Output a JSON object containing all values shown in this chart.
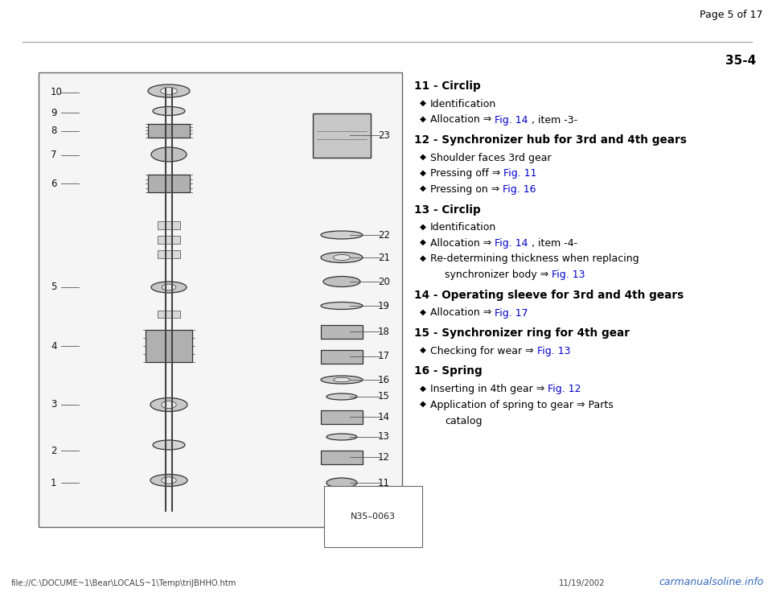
{
  "bg_color": "#ffffff",
  "page_header": "Page 5 of 17",
  "section_number": "35-4",
  "diagram_label": "N35–0063",
  "footer_left": "file://C:\\DOCUME~1\\Bear\\LOCALS~1\\Temp\\triJBHHO.htm",
  "footer_right": "11/19/2002",
  "watermark": "carmanualsoline.info",
  "link_color": "#0000cc",
  "text_color": "#000000",
  "gray_color": "#888888",
  "diamond_char": "◆",
  "items": [
    {
      "number": "11",
      "title": " - Circlip",
      "sub_items": [
        [
          {
            "t": "Identification",
            "c": "black",
            "b": false
          }
        ],
        [
          {
            "t": "Allocation ⇒ ",
            "c": "black",
            "b": false
          },
          {
            "t": "Fig. 14",
            "c": "blue",
            "b": false
          },
          {
            "t": " , item -3-",
            "c": "black",
            "b": false
          }
        ]
      ]
    },
    {
      "number": "12",
      "title": " - Synchronizer hub for 3rd and 4th gears",
      "sub_items": [
        [
          {
            "t": "Shoulder faces 3rd gear",
            "c": "black",
            "b": false
          }
        ],
        [
          {
            "t": "Pressing off ⇒ ",
            "c": "black",
            "b": false
          },
          {
            "t": "Fig. 11",
            "c": "blue",
            "b": false
          }
        ],
        [
          {
            "t": "Pressing on ⇒ ",
            "c": "black",
            "b": false
          },
          {
            "t": "Fig. 16",
            "c": "blue",
            "b": false
          }
        ]
      ]
    },
    {
      "number": "13",
      "title": " - Circlip",
      "sub_items": [
        [
          {
            "t": "Identification",
            "c": "black",
            "b": false
          }
        ],
        [
          {
            "t": "Allocation ⇒ ",
            "c": "black",
            "b": false
          },
          {
            "t": "Fig. 14",
            "c": "blue",
            "b": false
          },
          {
            "t": " , item -4-",
            "c": "black",
            "b": false
          }
        ],
        [
          {
            "t": "Re-determining thickness when replacing",
            "c": "black",
            "b": false
          }
        ],
        [
          {
            "t": "    synchronizer body ⇒ ",
            "c": "black",
            "b": false,
            "indent": true
          },
          {
            "t": "Fig. 13",
            "c": "blue",
            "b": false
          }
        ]
      ]
    },
    {
      "number": "14",
      "title": " - Operating sleeve for 3rd and 4th gears",
      "sub_items": [
        [
          {
            "t": "Allocation ⇒ ",
            "c": "black",
            "b": false
          },
          {
            "t": "Fig. 17",
            "c": "blue",
            "b": false
          }
        ]
      ]
    },
    {
      "number": "15",
      "title": " - Synchronizer ring for 4th gear",
      "sub_items": [
        [
          {
            "t": "Checking for wear ⇒ ",
            "c": "black",
            "b": false
          },
          {
            "t": "Fig. 13",
            "c": "blue",
            "b": false
          }
        ]
      ]
    },
    {
      "number": "16",
      "title": " - Spring",
      "sub_items": [
        [
          {
            "t": "Inserting in 4th gear ⇒ ",
            "c": "black",
            "b": false
          },
          {
            "t": "Fig. 12",
            "c": "blue",
            "b": false
          }
        ],
        [
          {
            "t": "Application of spring to gear ⇒ Parts",
            "c": "black",
            "b": false
          }
        ],
        [
          {
            "t": "    catalog",
            "c": "black",
            "b": false,
            "indent": true
          }
        ]
      ]
    }
  ]
}
